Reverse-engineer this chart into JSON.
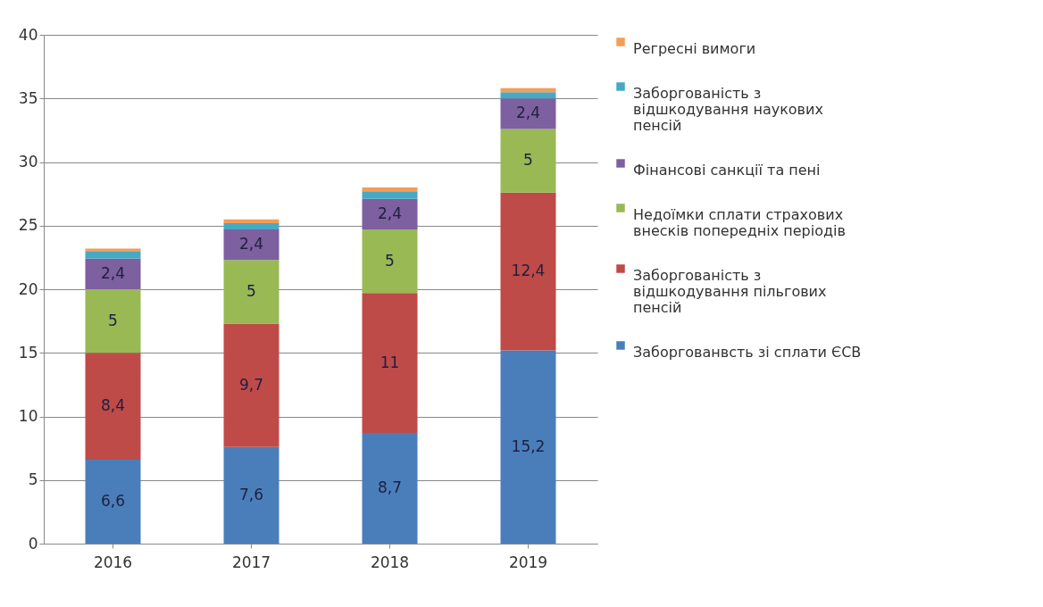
{
  "chart_data": {
    "type": "bar",
    "stacked": true,
    "categories": [
      "2016",
      "2017",
      "2018",
      "2019"
    ],
    "series": [
      {
        "name": "Заборгованвсть зі сплати ЄСВ",
        "color": "#4a7ebb",
        "values": [
          6.6,
          7.6,
          8.7,
          15.2
        ],
        "value_labels": [
          "6,6",
          "7,6",
          "8,7",
          "15,2"
        ]
      },
      {
        "name": "Заборгованість з відшкодування пільгових пенсій",
        "color": "#be4b48",
        "values": [
          8.4,
          9.7,
          11,
          12.4
        ],
        "value_labels": [
          "8,4",
          "9,7",
          "11",
          "12,4"
        ]
      },
      {
        "name": "Недоїмки сплати страхових внесків попередніх періодів",
        "color": "#98b954",
        "values": [
          5,
          5,
          5,
          5
        ],
        "value_labels": [
          "5",
          "5",
          "5",
          "5"
        ]
      },
      {
        "name": "Фінансові санкції та пені",
        "color": "#7d60a0",
        "values": [
          2.4,
          2.4,
          2.4,
          2.4
        ],
        "value_labels": [
          "2,4",
          "2,4",
          "2,4",
          "2,4"
        ]
      },
      {
        "name": "Заборгованість з відшкодування наукових пенсій",
        "color": "#46aac5",
        "values": [
          0.6,
          0.5,
          0.6,
          0.5
        ]
      },
      {
        "name": "Регресні вимоги",
        "color": "#f59d56",
        "values": [
          0.2,
          0.3,
          0.3,
          0.3
        ]
      }
    ],
    "ylim": [
      0,
      40
    ],
    "yticks": [
      0,
      5,
      10,
      15,
      20,
      25,
      30,
      35,
      40
    ],
    "grid": "y",
    "legend": "right"
  }
}
